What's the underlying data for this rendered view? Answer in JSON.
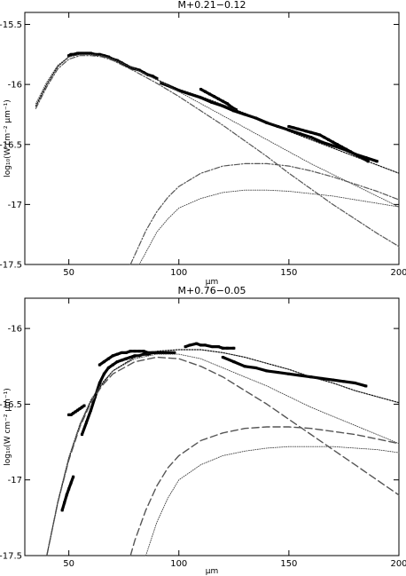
{
  "chart_data": [
    {
      "type": "line",
      "title": "M+0.21−0.12",
      "xlabel": "μm",
      "ylabel": "log₁₀(W cm⁻² μm⁻¹)",
      "xlim": [
        30,
        200
      ],
      "ylim": [
        -17.5,
        -15.4
      ],
      "xticks": [
        50,
        100,
        150,
        200
      ],
      "yticks": [
        -15.5,
        -16,
        -16.5,
        -17,
        -17.5
      ],
      "grid": false,
      "series": [
        {
          "style": "observed",
          "x": [
            50,
            51,
            52,
            54,
            56,
            58,
            60,
            62,
            64,
            66,
            68,
            70,
            72,
            74,
            76,
            78,
            80,
            82,
            84,
            86,
            88,
            90
          ],
          "y": [
            -15.76,
            -15.75,
            -15.75,
            -15.74,
            -15.74,
            -15.74,
            -15.74,
            -15.75,
            -15.75,
            -15.76,
            -15.77,
            -15.79,
            -15.8,
            -15.82,
            -15.84,
            -15.86,
            -15.87,
            -15.88,
            -15.9,
            -15.92,
            -15.93,
            -15.95
          ]
        },
        {
          "style": "observed",
          "x": [
            92,
            95,
            100,
            105,
            110,
            115,
            120,
            125,
            130,
            135,
            140,
            145,
            150,
            155,
            160,
            165,
            170,
            175,
            180,
            185,
            190
          ],
          "y": [
            -15.99,
            -16.01,
            -16.05,
            -16.08,
            -16.11,
            -16.15,
            -16.18,
            -16.22,
            -16.25,
            -16.28,
            -16.32,
            -16.35,
            -16.38,
            -16.41,
            -16.44,
            -16.48,
            -16.51,
            -16.54,
            -16.58,
            -16.61,
            -16.64
          ]
        },
        {
          "style": "observed",
          "x": [
            110,
            112,
            114,
            116,
            118,
            120,
            122,
            124,
            126
          ],
          "y": [
            -16.04,
            -16.06,
            -16.08,
            -16.1,
            -16.12,
            -16.14,
            -16.16,
            -16.19,
            -16.21
          ]
        },
        {
          "style": "observed",
          "x": [
            150,
            152,
            154,
            156,
            158,
            160,
            162,
            164,
            166,
            168,
            170,
            172,
            174,
            176,
            178,
            180,
            182,
            184,
            186
          ],
          "y": [
            -16.35,
            -16.36,
            -16.37,
            -16.38,
            -16.39,
            -16.4,
            -16.41,
            -16.42,
            -16.44,
            -16.46,
            -16.48,
            -16.5,
            -16.52,
            -16.54,
            -16.56,
            -16.58,
            -16.6,
            -16.62,
            -16.64
          ]
        },
        {
          "style": "total",
          "x": [
            35,
            40,
            45,
            50,
            55,
            60,
            65,
            70,
            80,
            90,
            100,
            110,
            120,
            130,
            140,
            150,
            160,
            170,
            180,
            190,
            200
          ],
          "y": [
            -16.18,
            -16.0,
            -15.85,
            -15.77,
            -15.75,
            -15.75,
            -15.76,
            -15.78,
            -15.87,
            -15.96,
            -16.04,
            -16.1,
            -16.17,
            -16.24,
            -16.31,
            -16.39,
            -16.46,
            -16.53,
            -16.6,
            -16.67,
            -16.74
          ]
        },
        {
          "style": "warm-component",
          "x": [
            35,
            40,
            45,
            50,
            55,
            60,
            65,
            70,
            80,
            90,
            100,
            110,
            120,
            130,
            140,
            150,
            160,
            170,
            180,
            190,
            200
          ],
          "y": [
            -16.2,
            -16.02,
            -15.87,
            -15.79,
            -15.76,
            -15.76,
            -15.77,
            -15.8,
            -15.89,
            -15.99,
            -16.1,
            -16.22,
            -16.34,
            -16.47,
            -16.6,
            -16.74,
            -16.87,
            -17.0,
            -17.12,
            -17.24,
            -17.35
          ]
        },
        {
          "style": "fit",
          "x": [
            35,
            40,
            45,
            50,
            55,
            60,
            65,
            70,
            80,
            90,
            100,
            110,
            120,
            130,
            140,
            150,
            160,
            170,
            180,
            190,
            200
          ],
          "y": [
            -16.16,
            -15.98,
            -15.84,
            -15.77,
            -15.75,
            -15.75,
            -15.76,
            -15.79,
            -15.87,
            -15.96,
            -16.06,
            -16.16,
            -16.26,
            -16.36,
            -16.46,
            -16.56,
            -16.66,
            -16.75,
            -16.84,
            -16.93,
            -17.02
          ]
        },
        {
          "style": "cold-component",
          "x": [
            78,
            80,
            85,
            90,
            95,
            100,
            110,
            120,
            130,
            140,
            150,
            160,
            170,
            180,
            190,
            200
          ],
          "y": [
            -17.5,
            -17.42,
            -17.22,
            -17.06,
            -16.94,
            -16.85,
            -16.74,
            -16.68,
            -16.66,
            -16.66,
            -16.68,
            -16.72,
            -16.77,
            -16.83,
            -16.89,
            -16.96
          ]
        },
        {
          "style": "fit",
          "x": [
            82,
            85,
            90,
            95,
            100,
            110,
            120,
            130,
            140,
            150,
            160,
            170,
            180,
            190,
            200
          ],
          "y": [
            -17.5,
            -17.4,
            -17.23,
            -17.12,
            -17.03,
            -16.95,
            -16.9,
            -16.88,
            -16.88,
            -16.89,
            -16.91,
            -16.93,
            -16.96,
            -16.99,
            -17.02
          ]
        }
      ]
    },
    {
      "type": "line",
      "title": "M+0.76−0.05",
      "xlabel": "μm",
      "ylabel": "log₁₀(W cm⁻² μm⁻¹)",
      "xlim": [
        30,
        200
      ],
      "ylim": [
        -17.5,
        -15.8
      ],
      "xticks": [
        50,
        100,
        150,
        200
      ],
      "yticks": [
        -16,
        -16.5,
        -17,
        -17.5
      ],
      "grid": false,
      "series": [
        {
          "style": "observed",
          "x": [
            47,
            48,
            49,
            50,
            51,
            52
          ],
          "y": [
            -17.2,
            -17.15,
            -17.1,
            -17.06,
            -17.02,
            -16.98
          ]
        },
        {
          "style": "observed",
          "x": [
            50,
            51,
            52,
            53,
            54,
            55,
            56,
            57
          ],
          "y": [
            -16.57,
            -16.57,
            -16.56,
            -16.55,
            -16.54,
            -16.53,
            -16.52,
            -16.51
          ]
        },
        {
          "style": "observed",
          "x": [
            56,
            58,
            60,
            62,
            64,
            66,
            68,
            70,
            72,
            74,
            76,
            78,
            80,
            82,
            84,
            86,
            88,
            90
          ],
          "y": [
            -16.7,
            -16.62,
            -16.54,
            -16.45,
            -16.36,
            -16.3,
            -16.26,
            -16.24,
            -16.22,
            -16.21,
            -16.2,
            -16.19,
            -16.18,
            -16.18,
            -16.17,
            -16.17,
            -16.16,
            -16.16
          ]
        },
        {
          "style": "observed",
          "x": [
            64,
            66,
            68,
            70,
            72,
            74,
            76,
            78,
            80,
            82,
            84,
            86,
            88,
            90,
            92,
            94,
            96,
            98
          ],
          "y": [
            -16.24,
            -16.22,
            -16.2,
            -16.18,
            -16.17,
            -16.16,
            -16.16,
            -16.15,
            -16.15,
            -16.15,
            -16.15,
            -16.16,
            -16.16,
            -16.16,
            -16.16,
            -16.16,
            -16.16,
            -16.16
          ]
        },
        {
          "style": "observed",
          "x": [
            103,
            105,
            108,
            110,
            112,
            115,
            118,
            120,
            122,
            125
          ],
          "y": [
            -16.12,
            -16.11,
            -16.1,
            -16.11,
            -16.11,
            -16.12,
            -16.12,
            -16.13,
            -16.13,
            -16.13
          ]
        },
        {
          "style": "observed",
          "x": [
            120,
            125,
            130,
            135,
            140,
            145,
            150,
            155,
            160,
            165,
            170,
            175,
            180,
            185
          ],
          "y": [
            -16.19,
            -16.22,
            -16.25,
            -16.26,
            -16.28,
            -16.29,
            -16.3,
            -16.31,
            -16.32,
            -16.33,
            -16.34,
            -16.35,
            -16.36,
            -16.38
          ]
        },
        {
          "style": "total",
          "x": [
            40,
            45,
            50,
            55,
            60,
            65,
            70,
            80,
            90,
            100,
            110,
            120,
            130,
            140,
            150,
            160,
            170,
            180,
            190,
            200
          ],
          "y": [
            -17.5,
            -17.15,
            -16.86,
            -16.64,
            -16.48,
            -16.37,
            -16.28,
            -16.19,
            -16.15,
            -16.14,
            -16.14,
            -16.16,
            -16.19,
            -16.23,
            -16.27,
            -16.32,
            -16.36,
            -16.41,
            -16.45,
            -16.49
          ]
        },
        {
          "style": "dashed",
          "x": [
            40,
            45,
            50,
            55,
            60,
            65,
            70,
            80,
            90,
            100,
            110,
            120,
            130,
            140,
            150,
            160,
            170,
            180,
            190,
            200
          ],
          "y": [
            -17.5,
            -17.15,
            -16.87,
            -16.65,
            -16.49,
            -16.38,
            -16.3,
            -16.22,
            -16.19,
            -16.2,
            -16.25,
            -16.32,
            -16.41,
            -16.5,
            -16.6,
            -16.7,
            -16.8,
            -16.9,
            -17.0,
            -17.1
          ]
        },
        {
          "style": "fit",
          "x": [
            40,
            45,
            50,
            55,
            60,
            65,
            70,
            80,
            90,
            100,
            110,
            120,
            130,
            140,
            150,
            160,
            170,
            180,
            190,
            200
          ],
          "y": [
            -17.5,
            -17.14,
            -16.85,
            -16.63,
            -16.47,
            -16.36,
            -16.28,
            -16.2,
            -16.17,
            -16.17,
            -16.2,
            -16.26,
            -16.32,
            -16.38,
            -16.45,
            -16.52,
            -16.58,
            -16.64,
            -16.7,
            -16.76
          ]
        },
        {
          "style": "dashed",
          "x": [
            78,
            80,
            85,
            90,
            95,
            100,
            110,
            120,
            130,
            140,
            150,
            160,
            170,
            180,
            190,
            200
          ],
          "y": [
            -17.5,
            -17.4,
            -17.2,
            -17.04,
            -16.92,
            -16.84,
            -16.74,
            -16.69,
            -16.66,
            -16.65,
            -16.65,
            -16.66,
            -16.68,
            -16.7,
            -16.73,
            -16.76
          ]
        },
        {
          "style": "fit",
          "x": [
            85,
            90,
            95,
            100,
            110,
            120,
            130,
            140,
            150,
            160,
            170,
            180,
            190,
            200
          ],
          "y": [
            -17.5,
            -17.28,
            -17.12,
            -17.0,
            -16.9,
            -16.84,
            -16.81,
            -16.79,
            -16.78,
            -16.78,
            -16.78,
            -16.79,
            -16.8,
            -16.82
          ]
        }
      ]
    }
  ]
}
